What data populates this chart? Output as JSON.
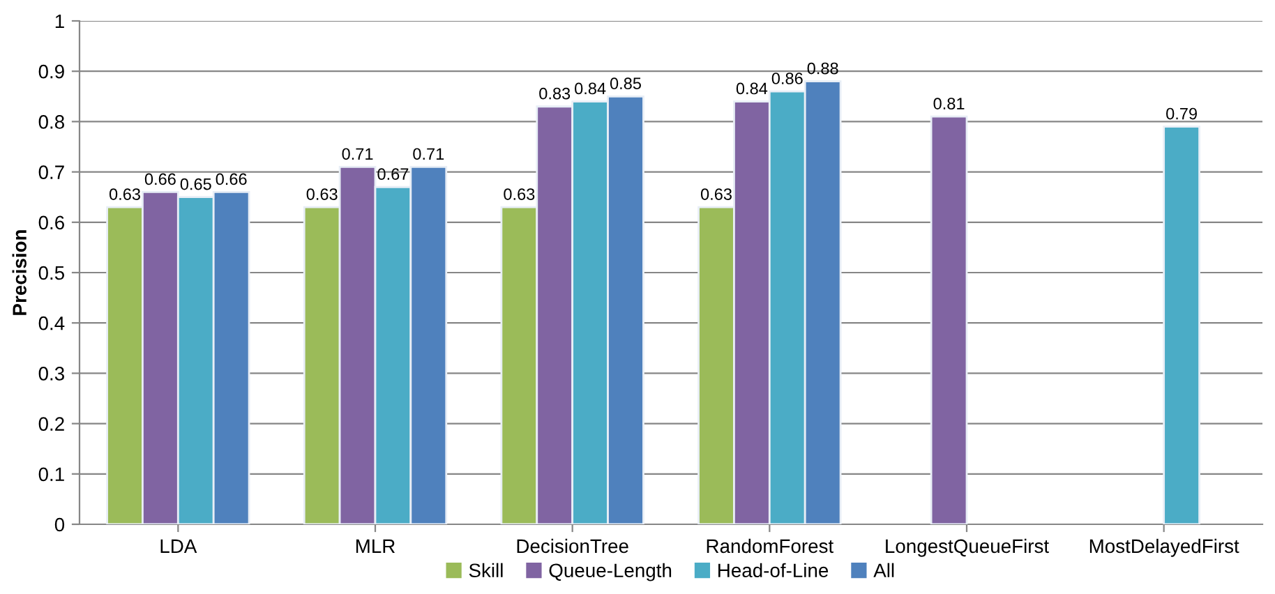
{
  "chart_data": {
    "type": "bar",
    "ylabel": "Precision",
    "categories": [
      "LDA",
      "MLR",
      "DecisionTree",
      "RandomForest",
      "LongestQueueFirst",
      "MostDelayedFirst"
    ],
    "series": [
      {
        "name": "Skill",
        "color": "#9bbb59",
        "values": [
          0.63,
          0.63,
          0.63,
          0.63,
          null,
          null
        ]
      },
      {
        "name": "Queue-Length",
        "color": "#8064a2",
        "values": [
          0.66,
          0.71,
          0.83,
          0.84,
          0.81,
          null
        ]
      },
      {
        "name": "Head-of-Line",
        "color": "#4bacc6",
        "values": [
          0.65,
          0.67,
          0.84,
          0.86,
          null,
          0.79
        ]
      },
      {
        "name": "All",
        "color": "#4f81bd",
        "values": [
          0.66,
          0.71,
          0.85,
          0.88,
          null,
          null
        ]
      }
    ],
    "ylim": [
      0,
      1
    ],
    "yticks": [
      0,
      0.1,
      0.2,
      0.3,
      0.4,
      0.5,
      0.6,
      0.7,
      0.8,
      0.9,
      1
    ],
    "grid": "y",
    "legend": "bottom",
    "data_labels": true
  }
}
